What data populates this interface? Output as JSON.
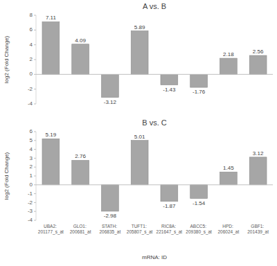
{
  "chart_data": [
    {
      "type": "bar",
      "title": "A vs. B",
      "y_label": "log2 (Fold Change)",
      "categories": [
        null,
        null,
        null,
        null,
        null,
        null,
        null,
        null
      ],
      "values": [
        7.11,
        4.09,
        -3.12,
        5.89,
        -1.43,
        -1.76,
        2.18,
        2.56
      ],
      "color": "#a6a6a6",
      "ylim": [
        -4,
        8
      ],
      "yticks": [
        -4,
        -2,
        0,
        2,
        4,
        6,
        8
      ],
      "grid": false,
      "data_labels": true,
      "tick_labels": "y"
    },
    {
      "type": "bar",
      "title": "B vs. C",
      "y_label": "log2 (Fold Change)",
      "x_label": "mRNA: ID",
      "categories": [
        "UBA2: 201177_s_at",
        "GLO1: 200681_at",
        "STATH: 206835_at",
        "TUFT1: 205807_s_at",
        "RIC8A: 221647_s_at",
        "ABCC5: 209380_s_at",
        "HPD: 206024_at",
        "GBF1: 201439_at"
      ],
      "values": [
        5.19,
        2.76,
        -2.98,
        5.01,
        -1.87,
        -1.54,
        1.45,
        3.12
      ],
      "color": "#a6a6a6",
      "ylim": [
        -4,
        6
      ],
      "yticks": [
        -4,
        -3,
        -2,
        -1,
        0,
        1,
        2,
        3,
        4,
        5,
        6
      ],
      "grid": false,
      "data_labels": true
    }
  ]
}
